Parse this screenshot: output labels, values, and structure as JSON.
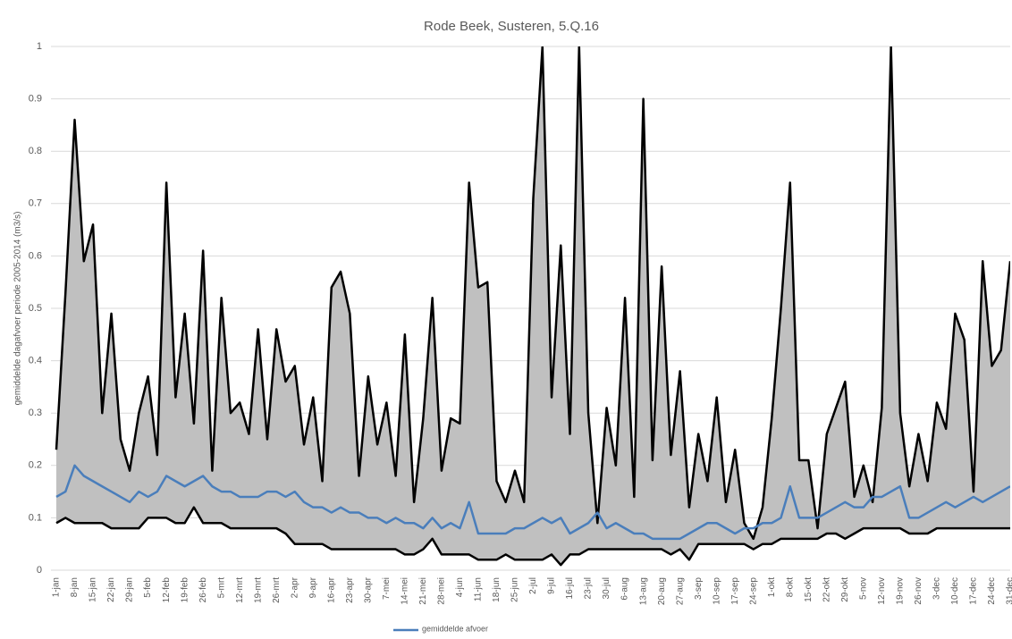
{
  "chart_data": {
    "type": "line",
    "title": "Rode Beek, Susteren, 5.Q.16",
    "y_label": "gemiddelde dagafvoer periode 2005-2014 (m3/s)",
    "categories": [
      "1-jan",
      null,
      "8-jan",
      null,
      "15-jan",
      null,
      "22-jan",
      null,
      "29-jan",
      null,
      "5-feb",
      null,
      "12-feb",
      null,
      "19-feb",
      null,
      "26-feb",
      null,
      "5-mrt",
      null,
      "12-mrt",
      null,
      "19-mrt",
      null,
      "26-mrt",
      null,
      "2-apr",
      null,
      "9-apr",
      null,
      "16-apr",
      null,
      "23-apr",
      null,
      "30-apr",
      null,
      "7-mei",
      null,
      "14-mei",
      null,
      "21-mei",
      null,
      "28-mei",
      null,
      "4-jun",
      null,
      "11-jun",
      null,
      "18-jun",
      null,
      "25-jun",
      null,
      "2-jul",
      null,
      "9-jul",
      null,
      "16-jul",
      null,
      "23-jul",
      null,
      "30-jul",
      null,
      "6-aug",
      null,
      "13-aug",
      null,
      "20-aug",
      null,
      "27-aug",
      null,
      "3-sep",
      null,
      "10-sep",
      null,
      "17-sep",
      null,
      "24-sep",
      null,
      "1-okt",
      null,
      "8-okt",
      null,
      "15-okt",
      null,
      "22-okt",
      null,
      "29-okt",
      null,
      "5-nov",
      null,
      "12-nov",
      null,
      "19-nov",
      null,
      "26-nov",
      null,
      "3-dec",
      null,
      "10-dec",
      null,
      "17-dec",
      null,
      "24-dec",
      null,
      "31-dec"
    ],
    "series": [
      {
        "color": "#000000",
        "values": [
          0.23,
          0.53,
          0.86,
          0.59,
          0.66,
          0.3,
          0.49,
          0.25,
          0.19,
          0.3,
          0.37,
          0.22,
          0.74,
          0.33,
          0.49,
          0.28,
          0.61,
          0.19,
          0.52,
          0.3,
          0.32,
          0.26,
          0.46,
          0.25,
          0.46,
          0.36,
          0.39,
          0.24,
          0.33,
          0.17,
          0.54,
          0.57,
          0.49,
          0.18,
          0.37,
          0.24,
          0.32,
          0.18,
          0.45,
          0.13,
          0.29,
          0.52,
          0.19,
          0.29,
          0.28,
          0.74,
          0.54,
          0.55,
          0.17,
          0.13,
          0.19,
          0.13,
          0.71,
          1.0,
          0.33,
          0.62,
          0.26,
          1.0,
          0.3,
          0.09,
          0.31,
          0.2,
          0.52,
          0.14,
          0.9,
          0.21,
          0.58,
          0.22,
          0.38,
          0.12,
          0.26,
          0.17,
          0.33,
          0.13,
          0.23,
          0.09,
          0.06,
          0.12,
          0.29,
          0.5,
          0.74,
          0.21,
          0.21,
          0.08,
          0.26,
          0.31,
          0.36,
          0.14,
          0.2,
          0.13,
          0.31,
          1.0,
          0.3,
          0.16,
          0.26,
          0.17,
          0.32,
          0.27,
          0.49,
          0.44,
          0.15,
          0.59,
          0.39,
          0.42,
          0.59
        ]
      },
      {
        "name": "gemiddelde afvoer",
        "color": "#4a7ebb",
        "values": [
          0.14,
          0.15,
          0.2,
          0.18,
          0.17,
          0.16,
          0.15,
          0.14,
          0.13,
          0.15,
          0.14,
          0.15,
          0.18,
          0.17,
          0.16,
          0.17,
          0.18,
          0.16,
          0.15,
          0.15,
          0.14,
          0.14,
          0.14,
          0.15,
          0.15,
          0.14,
          0.15,
          0.13,
          0.12,
          0.12,
          0.11,
          0.12,
          0.11,
          0.11,
          0.1,
          0.1,
          0.09,
          0.1,
          0.09,
          0.09,
          0.08,
          0.1,
          0.08,
          0.09,
          0.08,
          0.13,
          0.07,
          0.07,
          0.07,
          0.07,
          0.08,
          0.08,
          0.09,
          0.1,
          0.09,
          0.1,
          0.07,
          0.08,
          0.09,
          0.11,
          0.08,
          0.09,
          0.08,
          0.07,
          0.07,
          0.06,
          0.06,
          0.06,
          0.06,
          0.07,
          0.08,
          0.09,
          0.09,
          0.08,
          0.07,
          0.08,
          0.08,
          0.09,
          0.09,
          0.1,
          0.16,
          0.1,
          0.1,
          0.1,
          0.11,
          0.12,
          0.13,
          0.12,
          0.12,
          0.14,
          0.14,
          0.15,
          0.16,
          0.1,
          0.1,
          0.11,
          0.12,
          0.13,
          0.12,
          0.13,
          0.14,
          0.13,
          0.14,
          0.15,
          0.16
        ]
      },
      {
        "color": "#000000",
        "values": [
          0.09,
          0.1,
          0.09,
          0.09,
          0.09,
          0.09,
          0.08,
          0.08,
          0.08,
          0.08,
          0.1,
          0.1,
          0.1,
          0.09,
          0.09,
          0.12,
          0.09,
          0.09,
          0.09,
          0.08,
          0.08,
          0.08,
          0.08,
          0.08,
          0.08,
          0.07,
          0.05,
          0.05,
          0.05,
          0.05,
          0.04,
          0.04,
          0.04,
          0.04,
          0.04,
          0.04,
          0.04,
          0.04,
          0.03,
          0.03,
          0.04,
          0.06,
          0.03,
          0.03,
          0.03,
          0.03,
          0.02,
          0.02,
          0.02,
          0.03,
          0.02,
          0.02,
          0.02,
          0.02,
          0.03,
          0.01,
          0.03,
          0.03,
          0.04,
          0.04,
          0.04,
          0.04,
          0.04,
          0.04,
          0.04,
          0.04,
          0.04,
          0.03,
          0.04,
          0.02,
          0.05,
          0.05,
          0.05,
          0.05,
          0.05,
          0.05,
          0.04,
          0.05,
          0.05,
          0.06,
          0.06,
          0.06,
          0.06,
          0.06,
          0.07,
          0.07,
          0.06,
          0.07,
          0.08,
          0.08,
          0.08,
          0.08,
          0.08,
          0.07,
          0.07,
          0.07,
          0.08,
          0.08,
          0.08,
          0.08,
          0.08,
          0.08,
          0.08,
          0.08,
          0.08
        ]
      }
    ],
    "band_fill": "#c0c0c0",
    "ylim": [
      0,
      1
    ],
    "yticks": [
      0,
      0.1,
      0.2,
      0.3,
      0.4,
      0.5,
      0.6,
      0.7,
      0.8,
      0.9,
      1
    ],
    "grid": true
  }
}
